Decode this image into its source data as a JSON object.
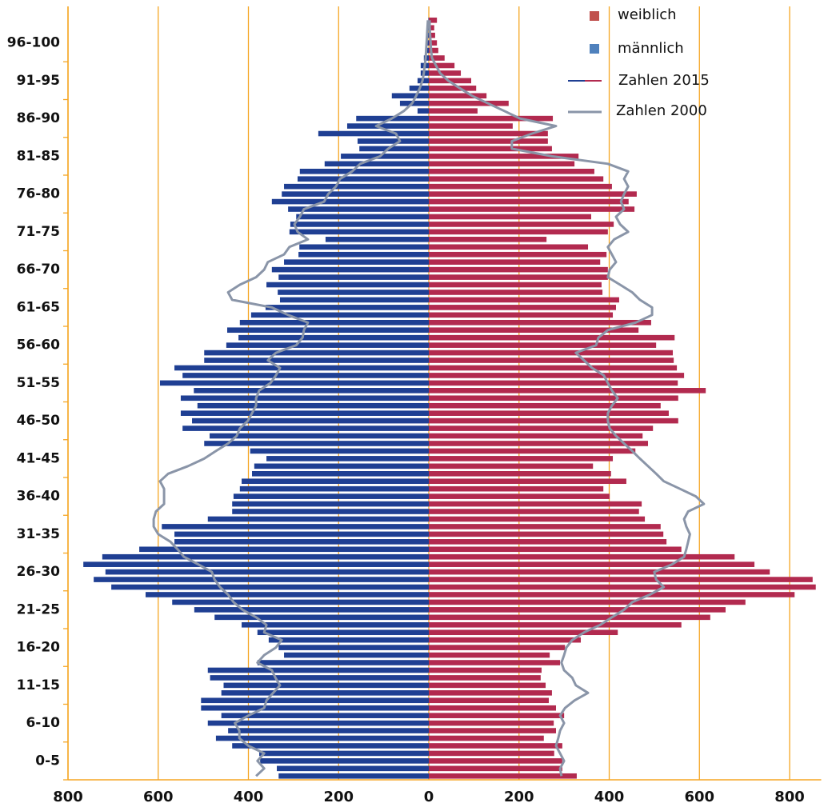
{
  "chart_data": {
    "type": "pyramid",
    "categories": [
      null,
      null,
      "0-5",
      null,
      null,
      null,
      null,
      "6-10",
      null,
      null,
      null,
      null,
      "11-15",
      null,
      null,
      null,
      null,
      "16-20",
      null,
      null,
      null,
      null,
      "21-25",
      null,
      null,
      null,
      null,
      "26-30",
      null,
      null,
      null,
      null,
      "31-35",
      null,
      null,
      null,
      null,
      "36-40",
      null,
      null,
      null,
      null,
      "41-45",
      null,
      null,
      null,
      null,
      "46-50",
      null,
      null,
      null,
      null,
      "51-55",
      null,
      null,
      null,
      null,
      "56-60",
      null,
      null,
      null,
      null,
      "61-65",
      null,
      null,
      null,
      null,
      "66-70",
      null,
      null,
      null,
      null,
      "71-75",
      null,
      null,
      null,
      null,
      "76-80",
      null,
      null,
      null,
      null,
      "81-85",
      null,
      null,
      null,
      null,
      "86-90",
      null,
      null,
      null,
      null,
      "91-95",
      null,
      null,
      null,
      null,
      "96-100",
      null,
      null,
      null
    ],
    "bars_label": "Zahlen 2015",
    "series": [
      {
        "name": "männlich",
        "color": "#1f3f93",
        "legend_color": "#4f81bd",
        "side": "left",
        "values": [
          333,
          337,
          374,
          376,
          436,
          472,
          445,
          490,
          460,
          505,
          505,
          460,
          455,
          485,
          490,
          380,
          321,
          333,
          355,
          380,
          415,
          475,
          520,
          569,
          628,
          704,
          743,
          717,
          766,
          724,
          642,
          564,
          564,
          592,
          490,
          436,
          436,
          433,
          419,
          415,
          392,
          387,
          360,
          396,
          498,
          486,
          546,
          525,
          550,
          513,
          550,
          521,
          596,
          546,
          564,
          498,
          498,
          449,
          422,
          447,
          419,
          394,
          362,
          330,
          335,
          360,
          333,
          348,
          321,
          289,
          287,
          229,
          309,
          307,
          294,
          312,
          348,
          326,
          321,
          291,
          286,
          231,
          195,
          154,
          158,
          245,
          181,
          161,
          25,
          64,
          82,
          43,
          25,
          18,
          18,
          11,
          7,
          5,
          4,
          2,
          1
        ]
      },
      {
        "name": "weiblich",
        "color": "#b22a4f",
        "legend_color": "#c0504d",
        "side": "right",
        "values": [
          328,
          296,
          296,
          278,
          296,
          255,
          282,
          277,
          300,
          282,
          266,
          273,
          259,
          248,
          250,
          291,
          268,
          302,
          337,
          419,
          560,
          624,
          658,
          702,
          811,
          858,
          851,
          756,
          722,
          678,
          560,
          527,
          520,
          514,
          479,
          466,
          472,
          401,
          387,
          438,
          404,
          364,
          408,
          458,
          486,
          474,
          497,
          553,
          532,
          514,
          553,
          614,
          552,
          566,
          550,
          543,
          541,
          504,
          545,
          465,
          493,
          408,
          415,
          422,
          385,
          383,
          397,
          397,
          380,
          394,
          353,
          261,
          397,
          410,
          360,
          456,
          443,
          461,
          406,
          387,
          367,
          323,
          332,
          273,
          264,
          264,
          186,
          275,
          108,
          177,
          128,
          105,
          94,
          71,
          57,
          35,
          21,
          18,
          14,
          12,
          18
        ]
      }
    ],
    "lines": [
      {
        "name": "Zahlen 2000",
        "color": "#8a95a8",
        "values_left": [
          383,
          365,
          380,
          365,
          400,
          420,
          420,
          430,
          400,
          365,
          360,
          345,
          330,
          340,
          348,
          380,
          365,
          339,
          326,
          365,
          360,
          383,
          413,
          433,
          445,
          463,
          475,
          481,
          511,
          543,
          557,
          573,
          600,
          610,
          610,
          605,
          587,
          587,
          587,
          596,
          578,
          534,
          498,
          472,
          445,
          426,
          419,
          401,
          392,
          383,
          383,
          376,
          351,
          339,
          330,
          357,
          339,
          294,
          280,
          277,
          268,
          312,
          348,
          436,
          445,
          419,
          383,
          365,
          357,
          321,
          309,
          268,
          291,
          298,
          286,
          277,
          232,
          223,
          206,
          197,
          170,
          152,
          108,
          90,
          64,
          73,
          117,
          82,
          55,
          37,
          28,
          20,
          14,
          11,
          9,
          7,
          6,
          5,
          4,
          3,
          2
        ],
        "values_right": [
          294,
          291,
          300,
          291,
          282,
          287,
          291,
          300,
          291,
          302,
          323,
          353,
          326,
          318,
          300,
          294,
          300,
          305,
          318,
          344,
          380,
          406,
          433,
          451,
          490,
          521,
          504,
          500,
          539,
          566,
          571,
          575,
          579,
          571,
          566,
          575,
          610,
          592,
          557,
          521,
          504,
          486,
          468,
          451,
          433,
          415,
          401,
          397,
          397,
          406,
          419,
          406,
          397,
          388,
          362,
          344,
          326,
          371,
          376,
          397,
          459,
          495,
          495,
          468,
          451,
          424,
          397,
          401,
          415,
          406,
          397,
          411,
          442,
          424,
          415,
          433,
          426,
          433,
          442,
          433,
          442,
          397,
          273,
          184,
          184,
          229,
          282,
          202,
          167,
          131,
          96,
          69,
          43,
          25,
          16,
          7,
          5,
          4,
          3,
          2,
          2
        ]
      }
    ],
    "xlim": [
      -800,
      870
    ],
    "xticks": [
      {
        "value": -800,
        "label": "800"
      },
      {
        "value": -600,
        "label": "600"
      },
      {
        "value": -400,
        "label": "400"
      },
      {
        "value": -200,
        "label": "200"
      },
      0,
      200,
      400,
      600,
      800
    ],
    "grid": true,
    "grid_color": "#f5a623",
    "legend": "top-right"
  }
}
